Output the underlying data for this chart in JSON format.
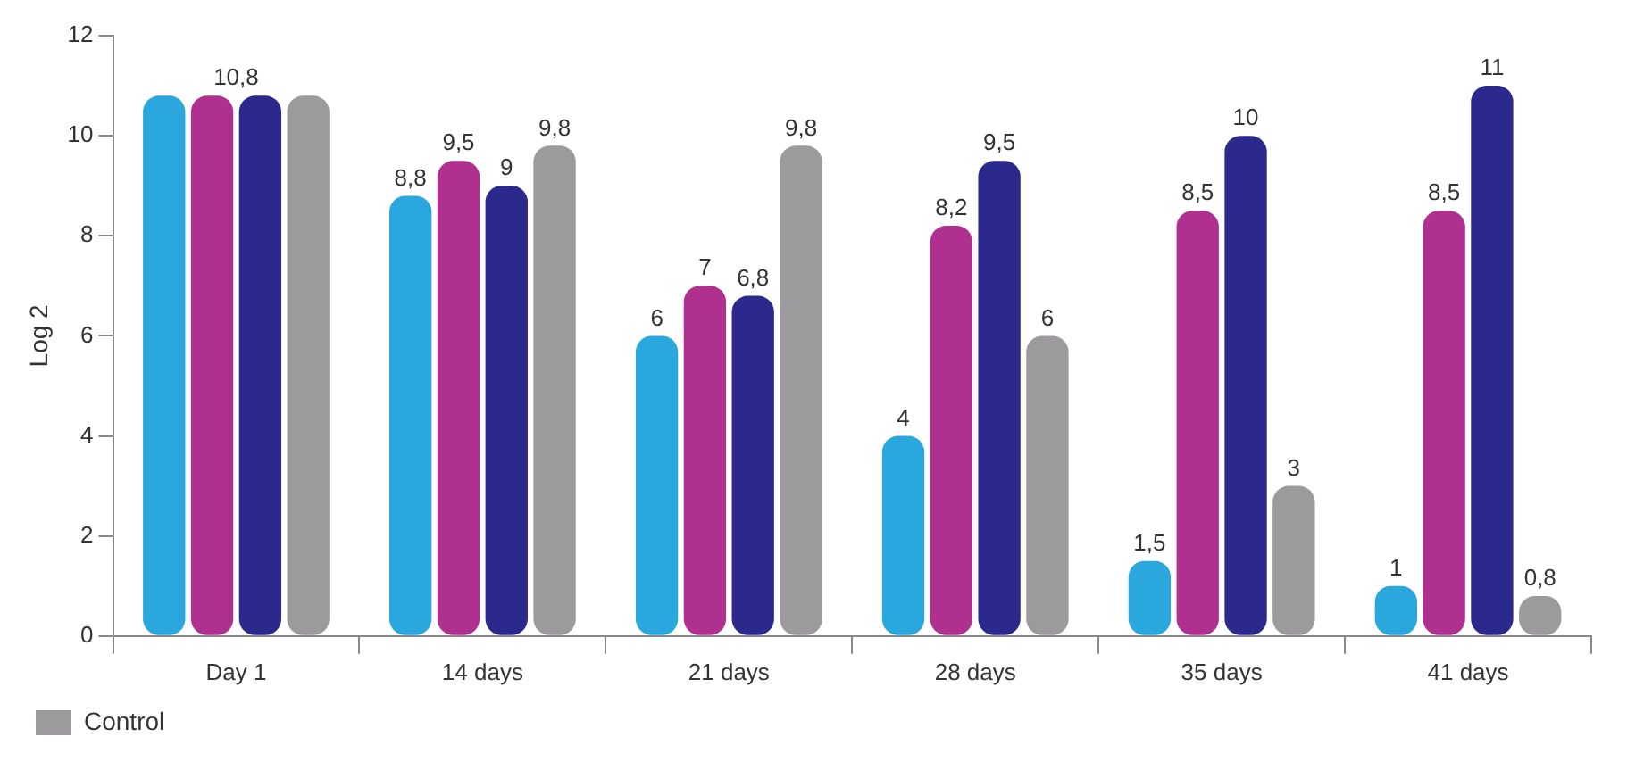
{
  "chart_data": {
    "type": "bar",
    "ylabel": "Log 2",
    "categories": [
      "Day 1",
      "14 days",
      "21 days",
      "28 days",
      "35 days",
      "41 days"
    ],
    "series": [
      {
        "color": "#2aa7dc",
        "values": [
          10.8,
          8.8,
          6,
          4,
          1.5,
          1
        ],
        "value_labels": [
          null,
          "8,8",
          "6",
          "4",
          "1,5",
          "1"
        ]
      },
      {
        "color": "#b0308f",
        "values": [
          10.8,
          9.5,
          7,
          8.2,
          8.5,
          8.5
        ],
        "value_labels": [
          "10,8",
          "9,5",
          "7",
          "8,2",
          "8,5",
          "8,5"
        ]
      },
      {
        "color": "#2b2a8c",
        "values": [
          10.8,
          9,
          6.8,
          9.5,
          10,
          11
        ],
        "value_labels": [
          null,
          "9",
          "6,8",
          "9,5",
          "10",
          "11"
        ]
      },
      {
        "name": "Control",
        "color": "#9c9a9c",
        "values": [
          10.8,
          9.8,
          9.8,
          6,
          3,
          0.8
        ],
        "value_labels": [
          null,
          "9,8",
          "9,8",
          "6",
          "3",
          "0,8"
        ]
      }
    ],
    "ylim": [
      0,
      12
    ],
    "yticks": [
      0,
      2,
      4,
      6,
      8,
      10,
      12
    ],
    "legend": "bottom left"
  }
}
